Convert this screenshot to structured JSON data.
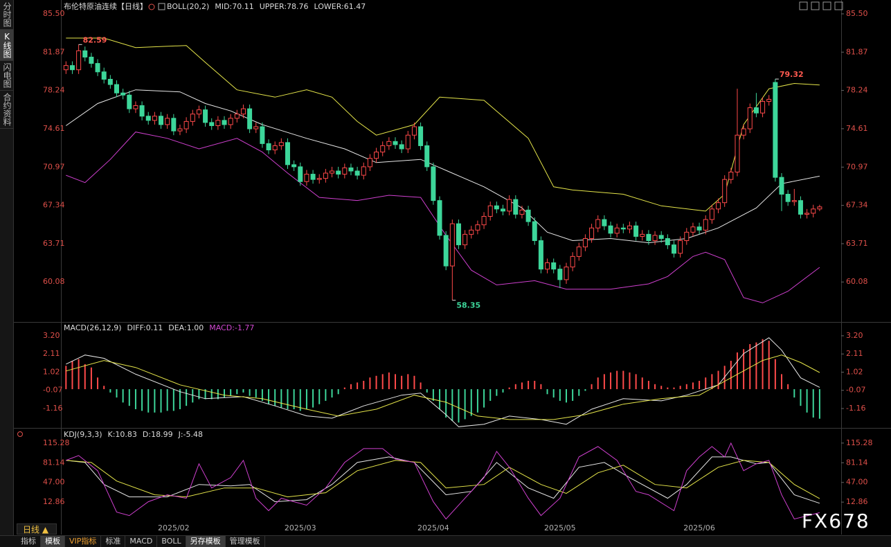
{
  "ui": {
    "side_tabs": [
      "分时图",
      "K线图",
      "闪电图",
      "合约资料"
    ],
    "period_button": "日线",
    "bottom_tabs": [
      "指标",
      "模板",
      "VIP指标",
      "标准",
      "MACD",
      "BOLL",
      "另存模板",
      "管理模板"
    ],
    "watermark": "FX678"
  },
  "chart_data": [
    {
      "type": "candlestick",
      "title": "布伦特原油连续【日线】",
      "indicator": "BOLL(20,2)",
      "up_color": "#ff4a4a",
      "down_color": "#3dd69a",
      "xlim": [
        -0.8,
        122.4
      ],
      "ylim": [
        56.42,
        85.5
      ],
      "yticks": [
        {
          "value": 85.5,
          "label": "85.50"
        },
        81.87,
        78.24,
        74.61,
        70.97,
        67.34,
        63.71,
        60.08
      ],
      "open": [
        80.2,
        80.6,
        80.2,
        82.0,
        81.4,
        80.8,
        80.0,
        79.3,
        78.8,
        78.0,
        77.8,
        76.5,
        76.8,
        75.8,
        75.4,
        75.8,
        75.0,
        75.6,
        74.4,
        74.6,
        75.3,
        76.0,
        76.4,
        75.2,
        74.9,
        75.4,
        75.0,
        75.6,
        76.0,
        76.5,
        74.6,
        74.8,
        73.2,
        72.6,
        73.0,
        73.3,
        71.2,
        71.0,
        69.6,
        70.3,
        69.8,
        69.9,
        70.4,
        70.6,
        70.3,
        70.9,
        70.6,
        70.2,
        71.0,
        71.8,
        72.4,
        73.0,
        73.4,
        73.1,
        72.7,
        74.0,
        74.8,
        73.0,
        71.0,
        67.8,
        64.5,
        61.6,
        65.6,
        63.6,
        64.6,
        65.0,
        65.5,
        66.3,
        67.3,
        67.0,
        66.8,
        67.9,
        66.5,
        66.9,
        65.8,
        64.0,
        61.3,
        61.9,
        61.3,
        60.3,
        61.5,
        62.5,
        63.4,
        64.2,
        65.2,
        66.0,
        65.4,
        64.7,
        65.2,
        65.1,
        65.4,
        64.4,
        64.6,
        64.0,
        64.5,
        64.2,
        63.6,
        62.8,
        64.0,
        64.8,
        65.3,
        65.0,
        66.0,
        67.0,
        67.6,
        69.8,
        70.5,
        74.0,
        74.6,
        76.6,
        76.1,
        77.2,
        79.0,
        70.0,
        68.4,
        67.7,
        67.8,
        66.5,
        66.6,
        67.0
      ],
      "high": [
        81.0,
        81.0,
        82.59,
        82.4,
        81.8,
        81.2,
        80.4,
        79.7,
        79.2,
        78.4,
        78.2,
        77.2,
        77.2,
        76.2,
        76.2,
        76.2,
        76.0,
        76.0,
        75.0,
        75.7,
        76.4,
        76.8,
        76.8,
        75.6,
        75.8,
        75.8,
        76.0,
        76.4,
        76.9,
        76.9,
        75.2,
        75.2,
        73.6,
        73.4,
        73.7,
        73.7,
        71.6,
        71.4,
        70.7,
        70.7,
        70.3,
        70.8,
        71.0,
        71.0,
        71.3,
        71.3,
        71.0,
        71.4,
        72.2,
        72.8,
        73.4,
        73.8,
        73.8,
        73.5,
        74.4,
        75.2,
        75.2,
        73.4,
        71.4,
        68.2,
        64.9,
        66.0,
        66.0,
        65.0,
        65.4,
        65.9,
        66.7,
        67.7,
        67.7,
        67.4,
        68.3,
        68.3,
        67.3,
        67.3,
        66.2,
        64.4,
        62.3,
        62.3,
        61.7,
        61.9,
        62.9,
        63.8,
        64.6,
        65.6,
        66.4,
        66.4,
        65.8,
        65.6,
        65.6,
        65.8,
        65.8,
        65.0,
        65.0,
        64.9,
        64.9,
        64.6,
        64.0,
        64.4,
        65.2,
        65.7,
        65.7,
        66.4,
        67.4,
        68.0,
        70.2,
        70.9,
        78.4,
        75.0,
        77.0,
        78.0,
        77.6,
        77.8,
        79.32,
        70.4,
        68.8,
        68.9,
        68.2,
        67.0,
        67.4,
        67.4
      ],
      "low": [
        79.8,
        79.8,
        79.8,
        81.0,
        80.4,
        79.6,
        78.9,
        78.4,
        77.6,
        77.4,
        76.1,
        76.1,
        75.4,
        75.0,
        75.0,
        74.6,
        74.6,
        74.0,
        74.0,
        74.2,
        74.9,
        75.6,
        74.8,
        74.5,
        74.5,
        74.6,
        74.6,
        75.2,
        75.6,
        74.2,
        74.2,
        72.8,
        72.2,
        72.2,
        72.6,
        70.8,
        70.6,
        69.2,
        69.2,
        69.4,
        69.4,
        69.5,
        70.0,
        69.9,
        69.9,
        70.2,
        69.8,
        69.8,
        70.6,
        71.4,
        72.0,
        72.6,
        72.7,
        72.3,
        72.3,
        73.6,
        72.6,
        70.6,
        67.4,
        64.1,
        61.2,
        58.35,
        63.2,
        63.2,
        64.2,
        64.6,
        65.1,
        65.9,
        66.6,
        66.4,
        66.4,
        66.1,
        66.1,
        65.4,
        63.6,
        60.9,
        60.9,
        60.9,
        59.5,
        59.9,
        61.1,
        62.1,
        63.0,
        63.8,
        64.8,
        65.0,
        64.3,
        64.3,
        64.7,
        64.7,
        64.0,
        64.0,
        63.6,
        63.6,
        63.8,
        63.2,
        62.4,
        62.4,
        63.6,
        64.4,
        64.6,
        64.6,
        65.6,
        66.6,
        67.2,
        69.4,
        70.1,
        73.6,
        74.2,
        75.7,
        75.7,
        76.8,
        69.6,
        66.8,
        67.3,
        67.3,
        66.1,
        66.1,
        66.2,
        66.8
      ],
      "close": [
        80.6,
        80.2,
        82.0,
        81.4,
        80.8,
        80.0,
        79.3,
        78.8,
        78.0,
        77.8,
        76.5,
        76.8,
        75.8,
        75.4,
        75.8,
        75.0,
        75.6,
        74.4,
        74.6,
        75.3,
        76.0,
        76.4,
        75.2,
        74.9,
        75.4,
        75.0,
        75.6,
        76.0,
        76.5,
        74.6,
        74.8,
        73.2,
        72.6,
        73.0,
        73.3,
        71.2,
        71.0,
        69.6,
        70.3,
        69.8,
        69.9,
        70.4,
        70.6,
        70.3,
        70.9,
        70.6,
        70.2,
        71.0,
        71.8,
        72.4,
        73.0,
        73.4,
        73.1,
        72.7,
        74.0,
        74.8,
        73.0,
        71.0,
        67.8,
        64.5,
        61.6,
        65.6,
        63.6,
        64.6,
        65.0,
        65.5,
        66.3,
        67.3,
        67.0,
        66.8,
        67.9,
        66.5,
        66.9,
        65.8,
        64.0,
        61.3,
        61.9,
        61.3,
        60.3,
        61.5,
        62.5,
        63.4,
        64.2,
        65.2,
        66.0,
        65.4,
        64.7,
        65.2,
        65.1,
        65.4,
        64.4,
        64.6,
        64.0,
        64.5,
        64.2,
        63.6,
        62.8,
        64.0,
        64.8,
        65.3,
        65.0,
        66.0,
        67.0,
        67.6,
        69.8,
        70.5,
        74.0,
        74.6,
        76.6,
        76.1,
        77.2,
        77.4,
        70.0,
        68.4,
        67.7,
        67.8,
        66.5,
        66.6,
        67.0,
        67.2
      ],
      "series": [
        {
          "label": "MID:70.11",
          "color": "#e8e8e8",
          "x": [
            0,
            5,
            11,
            18,
            22,
            26,
            31,
            38,
            44,
            49,
            56,
            61,
            66,
            72,
            76,
            80,
            86,
            92,
            98,
            103,
            109,
            113,
            119
          ],
          "values": [
            74.9,
            77.0,
            78.3,
            78.1,
            77.0,
            76.3,
            75.0,
            73.7,
            72.7,
            71.4,
            71.7,
            70.4,
            69.1,
            67.1,
            64.8,
            64.0,
            64.2,
            63.8,
            64.2,
            65.2,
            67.1,
            69.4,
            70.11
          ]
        },
        {
          "label": "UPPER:78.76",
          "color": "#e6e64a",
          "x": [
            0,
            6,
            11,
            19,
            22,
            27,
            33,
            38,
            42,
            46,
            49,
            55,
            59,
            66,
            73,
            77,
            80,
            88,
            94,
            101,
            104,
            107,
            111,
            115,
            119
          ],
          "values": [
            83.2,
            83.2,
            82.3,
            82.5,
            80.9,
            78.3,
            77.6,
            78.3,
            77.6,
            75.3,
            74.0,
            75.0,
            77.6,
            77.3,
            73.7,
            69.1,
            68.8,
            68.4,
            67.3,
            66.8,
            68.4,
            75.0,
            78.4,
            78.9,
            78.76
          ]
        },
        {
          "label": "LOWER:61.47",
          "color": "#d040d0",
          "x": [
            0,
            3,
            7,
            11,
            16,
            21,
            27,
            31,
            35,
            40,
            46,
            51,
            56,
            60,
            64,
            68,
            74,
            79,
            86,
            92,
            95,
            99,
            101,
            104,
            107,
            110,
            114,
            119
          ],
          "values": [
            70.2,
            69.5,
            71.7,
            74.3,
            73.7,
            72.7,
            73.7,
            72.4,
            70.4,
            68.1,
            67.8,
            68.3,
            68.1,
            64.5,
            61.2,
            59.8,
            60.2,
            59.4,
            59.4,
            59.9,
            60.6,
            62.5,
            62.9,
            62.2,
            58.6,
            58.1,
            59.2,
            61.47
          ]
        }
      ]
    },
    {
      "type": "macd",
      "title": "MACD(26,12,9)",
      "hist_label": "MACD:-1.77",
      "xlim": [
        -0.8,
        122.4
      ],
      "ylim": [
        -2.28,
        3.82
      ],
      "yticks": [
        {
          "value": 3.2,
          "label": "3.20"
        },
        2.11,
        1.02,
        -0.07,
        -1.16
      ],
      "up_color": "#ff4a4a",
      "down_color": "#3dd69a",
      "values": [
        1.4,
        1.7,
        1.8,
        1.5,
        1.3,
        0.7,
        0.2,
        -0.2,
        -0.5,
        -0.8,
        -1.0,
        -1.2,
        -1.3,
        -1.4,
        -1.4,
        -1.4,
        -1.3,
        -1.3,
        -1.2,
        -1.0,
        -0.8,
        -0.6,
        -0.6,
        -0.6,
        -0.6,
        -0.5,
        -0.4,
        -0.3,
        -0.2,
        -0.4,
        -0.5,
        -0.7,
        -0.9,
        -1.0,
        -1.1,
        -1.2,
        -1.2,
        -1.3,
        -1.2,
        -1.1,
        -0.9,
        -0.7,
        -0.5,
        -0.3,
        0.1,
        0.3,
        0.4,
        0.5,
        0.7,
        0.8,
        0.9,
        1.0,
        0.9,
        0.8,
        0.9,
        0.8,
        0.4,
        -0.2,
        -0.7,
        -1.2,
        -1.7,
        -1.9,
        -2.0,
        -1.8,
        -1.6,
        -1.4,
        -1.1,
        -0.7,
        -0.4,
        -0.2,
        0.1,
        0.3,
        0.4,
        0.5,
        0.5,
        0.3,
        -0.3,
        -0.5,
        -0.7,
        -0.8,
        -0.7,
        -0.4,
        -0.1,
        0.3,
        0.7,
        0.9,
        1.0,
        1.1,
        1.1,
        1.0,
        0.9,
        0.7,
        0.5,
        0.3,
        0.2,
        0.1,
        0.1,
        0.2,
        0.3,
        0.4,
        0.5,
        0.7,
        0.9,
        1.1,
        1.4,
        1.7,
        2.2,
        2.4,
        2.7,
        2.8,
        3.0,
        2.9,
        1.8,
        0.9,
        0.3,
        -0.5,
        -1.0,
        -1.4,
        -1.7,
        -1.77
      ],
      "series": [
        {
          "label": "DIFF:0.11",
          "color": "#e8e8e8",
          "x": [
            0,
            3,
            6,
            11,
            18,
            22,
            28,
            33,
            38,
            42,
            47,
            53,
            56,
            60,
            62,
            66,
            70,
            75,
            79,
            83,
            88,
            94,
            98,
            103,
            107,
            111,
            113,
            116,
            119
          ],
          "values": [
            1.5,
            2.05,
            1.85,
            0.9,
            -0.15,
            -0.57,
            -0.45,
            -1.0,
            -1.6,
            -1.74,
            -1.0,
            -0.36,
            -0.24,
            -1.53,
            -2.25,
            -2.1,
            -1.61,
            -1.82,
            -2.1,
            -1.2,
            -0.57,
            -0.7,
            -0.36,
            0.26,
            2.13,
            3.08,
            2.34,
            0.68,
            0.11
          ]
        },
        {
          "label": "DEA:1.00",
          "color": "#e6e64a",
          "x": [
            0,
            6,
            11,
            18,
            25,
            31,
            38,
            43,
            49,
            55,
            60,
            65,
            70,
            77,
            82,
            88,
            94,
            100,
            105,
            110,
            113,
            116,
            119
          ],
          "values": [
            1.09,
            1.72,
            1.3,
            0.26,
            -0.36,
            -0.57,
            -1.2,
            -1.61,
            -1.2,
            -0.36,
            -0.78,
            -1.61,
            -1.82,
            -1.82,
            -1.53,
            -0.9,
            -0.57,
            -0.36,
            0.68,
            1.72,
            2.05,
            1.6,
            1.0
          ]
        }
      ]
    },
    {
      "type": "line",
      "title": "KDJ(9,3,3)",
      "xlim": [
        -0.8,
        122.4
      ],
      "ylim": [
        -29,
        133.2
      ],
      "yticks": [
        115.28,
        81.14,
        {
          "value": 47,
          "label": "47.00"
        },
        12.86
      ],
      "xticks": [
        {
          "value": 17,
          "label": "2025/02"
        },
        {
          "value": 37,
          "label": "2025/03"
        },
        {
          "value": 58,
          "label": "2025/04"
        },
        {
          "value": 78,
          "label": "2025/05"
        },
        {
          "value": 100,
          "label": "2025/06"
        }
      ],
      "series": [
        {
          "label": "K:10.83",
          "color": "#e8e8e8",
          "x": [
            0,
            3,
            6,
            10,
            16,
            21,
            26,
            29,
            33,
            38,
            42,
            46,
            51,
            55,
            60,
            64,
            68,
            73,
            77,
            81,
            85,
            89,
            95,
            98,
            102,
            105,
            109,
            111,
            115,
            119
          ],
          "values": [
            85.3,
            81.7,
            43.4,
            21.9,
            21.9,
            43.4,
            41,
            43.4,
            13.5,
            17.1,
            43.4,
            81.7,
            91.3,
            81.7,
            25.5,
            31.4,
            81.7,
            37.4,
            19.5,
            73.4,
            81.7,
            55.4,
            19.5,
            43.4,
            91.3,
            91.3,
            79.4,
            81.7,
            25.5,
            10.83
          ]
        },
        {
          "label": "D:18.99",
          "color": "#e6e64a",
          "x": [
            0,
            4,
            8,
            14,
            19,
            25,
            30,
            35,
            41,
            46,
            52,
            56,
            60,
            66,
            70,
            75,
            79,
            84,
            88,
            93,
            98,
            103,
            107,
            111,
            115,
            119
          ],
          "values": [
            85.3,
            81.7,
            49.4,
            25.5,
            21.9,
            37.4,
            37.4,
            21.9,
            29.1,
            67.4,
            85.3,
            81.7,
            37.4,
            43.4,
            73.4,
            43.4,
            27.9,
            63.8,
            77.0,
            43.4,
            37.4,
            73.4,
            85.3,
            81.7,
            43.4,
            18.99
          ]
        },
        {
          "label": "J:-5.48",
          "color": "#d040d0",
          "x": [
            0,
            2,
            5,
            8,
            10,
            13,
            16,
            19,
            21,
            23,
            26,
            28,
            30,
            32,
            34,
            38,
            41,
            44,
            47,
            50,
            52,
            55,
            58,
            60,
            63,
            66,
            68,
            70,
            73,
            75,
            78,
            81,
            84,
            87,
            90,
            92,
            96,
            98,
            100,
            102,
            104,
            105,
            107,
            109,
            111,
            113,
            115,
            119
          ],
          "values": [
            85.3,
            93.7,
            67.4,
            -4.5,
            -10.5,
            13.5,
            25.5,
            19.5,
            79.4,
            37.4,
            55.4,
            85.3,
            19.5,
            -2,
            19.5,
            7.5,
            37.4,
            81.7,
            105.7,
            105.7,
            87.7,
            81.7,
            13.5,
            -16.5,
            19.5,
            55.4,
            100.9,
            73.4,
            19.5,
            -10.5,
            19.5,
            91.3,
            109.3,
            85.3,
            31.4,
            25.5,
            -2,
            67.4,
            91.3,
            109.3,
            91.3,
            115.3,
            67.4,
            79.4,
            85.3,
            25.5,
            -16.5,
            -5.48
          ]
        }
      ]
    }
  ]
}
